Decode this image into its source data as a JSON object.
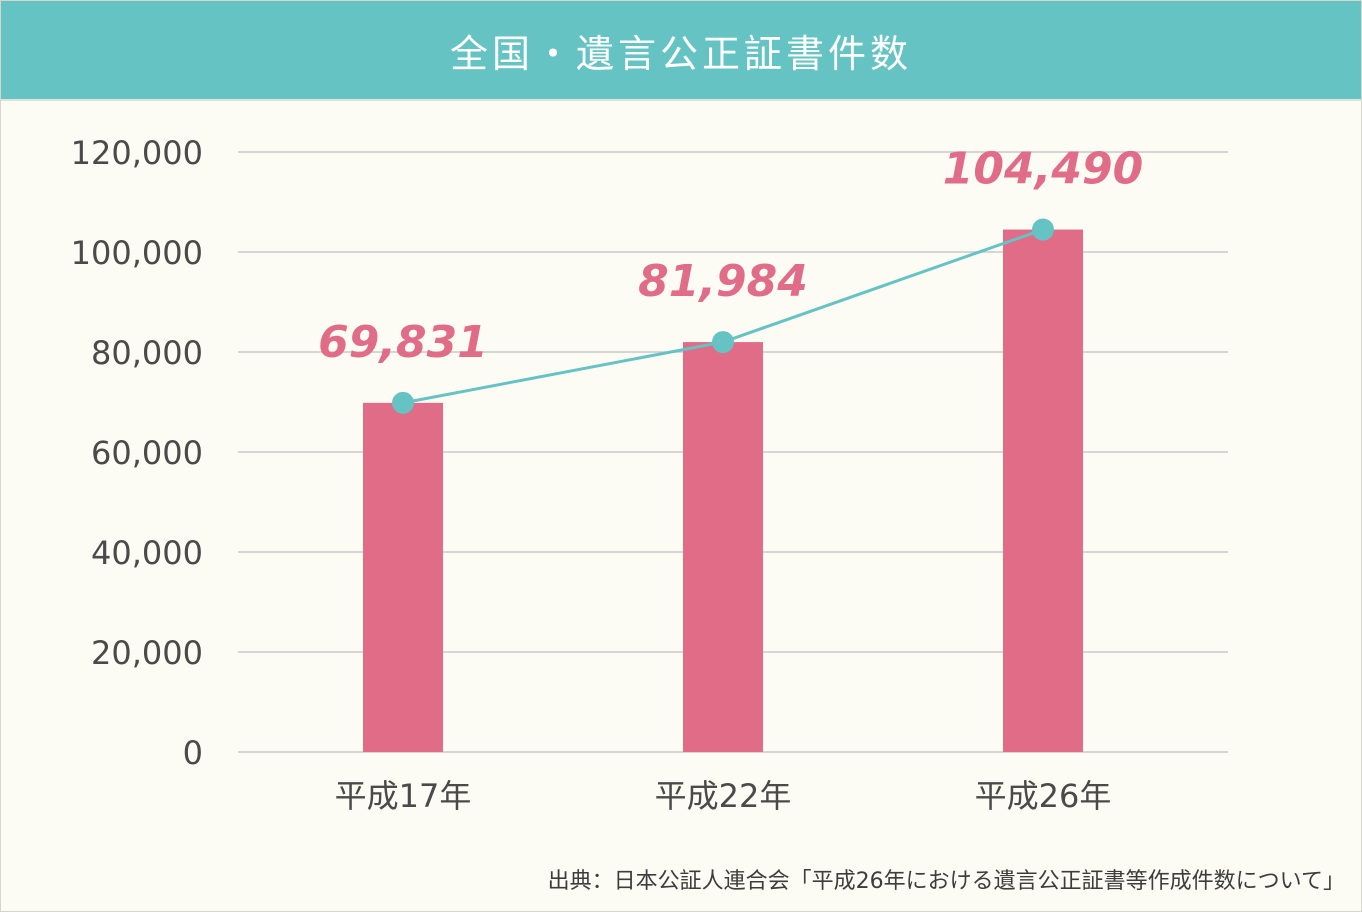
{
  "title": "全国・遺言公正証書件数",
  "source": "出典：日本公証人連合会「平成26年における遺言公正証書等作成件数について」",
  "colors": {
    "header": "#66c3c3",
    "bar": "#e06c87",
    "line": "#66c3c3",
    "value_label": "#e06c87",
    "grid": "#c8c8c8",
    "axis_text": "#4a4a4a"
  },
  "chart_data": {
    "type": "bar",
    "categories": [
      "平成17年",
      "平成22年",
      "平成26年"
    ],
    "values": [
      69831,
      81984,
      104490
    ],
    "value_labels": [
      "69,831",
      "81,984",
      "104,490"
    ],
    "ylim": [
      0,
      120000
    ],
    "yticks": [
      0,
      20000,
      40000,
      60000,
      80000,
      100000,
      120000
    ],
    "ytick_labels": [
      "0",
      "20,000",
      "40,000",
      "60,000",
      "80,000",
      "100,000",
      "120,000"
    ],
    "overlay_line": true,
    "grid": true,
    "xlabel": "",
    "ylabel": ""
  }
}
